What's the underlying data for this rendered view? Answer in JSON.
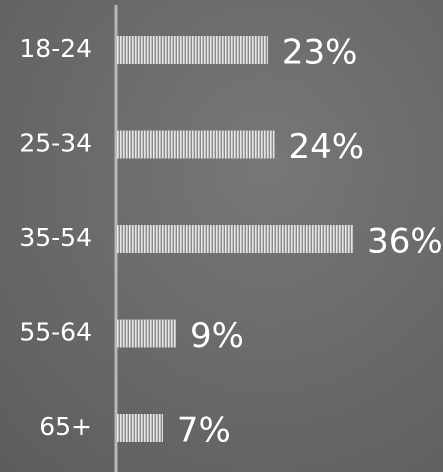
{
  "chart_data": {
    "type": "bar",
    "categories": [
      "18-24",
      "25-34",
      "35-54",
      "55-64",
      "65+"
    ],
    "values": [
      23,
      24,
      36,
      9,
      7
    ],
    "value_labels": [
      "23%",
      "24%",
      "36%",
      "9%",
      "7%"
    ],
    "color": "#e6e6e6"
  }
}
